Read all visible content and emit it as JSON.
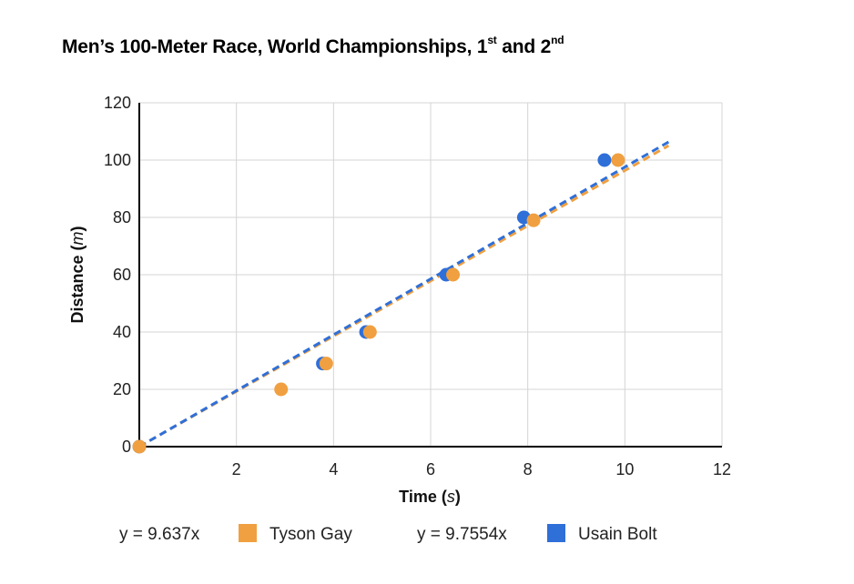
{
  "chart_data": {
    "type": "scatter",
    "title_parts": [
      "Men’s 100-Meter Race, World Championships, 1",
      "st",
      " and 2",
      "nd"
    ],
    "xlabel_main": "Time (",
    "xlabel_unit": "s",
    "xlabel_end": ")",
    "ylabel_main": "Distance (",
    "ylabel_unit": "m",
    "ylabel_end": ")",
    "xlim": [
      0,
      12
    ],
    "ylim": [
      0,
      120
    ],
    "xticks": [
      "2",
      "4",
      "6",
      "8",
      "10",
      "12"
    ],
    "yticks": [
      "0",
      "20",
      "40",
      "60",
      "80",
      "100",
      "120"
    ],
    "grid": true,
    "legend_position": "bottom",
    "series": [
      {
        "name": "Tyson Gay",
        "color": "#F0A040",
        "x": [
          0,
          2.92,
          3.85,
          4.75,
          6.46,
          8.12,
          9.86
        ],
        "y": [
          0,
          20,
          29,
          40,
          60,
          79,
          100
        ],
        "trendline": {
          "equation": "y = 9.637x",
          "slope": 9.637,
          "x_end": 10.9
        }
      },
      {
        "name": "Usain Bolt",
        "color": "#2F6FD8",
        "x": [
          0,
          3.78,
          4.67,
          6.32,
          7.92,
          9.58
        ],
        "y": [
          0,
          29,
          40,
          60,
          80,
          100
        ],
        "trendline": {
          "equation": "y = 9.7554x",
          "slope": 9.7554,
          "x_end": 10.9
        }
      }
    ]
  }
}
